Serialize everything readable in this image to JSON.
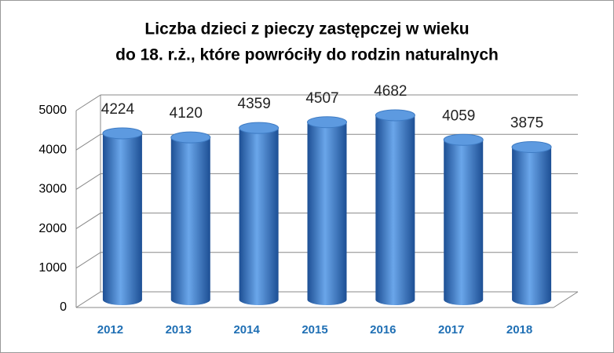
{
  "chart_data": {
    "type": "bar3d",
    "title": [
      "Liczba dzieci z pieczy zastępczej w wieku",
      "do 18. r.ż., które powróciły do rodzin naturalnych"
    ],
    "categories": [
      "2012",
      "2013",
      "2014",
      "2015",
      "2016",
      "2017",
      "2018"
    ],
    "values": [
      4224,
      4120,
      4359,
      4507,
      4682,
      4059,
      3875
    ],
    "color": "#3a7fd0",
    "ylim": [
      0,
      5000
    ],
    "yticks": [
      0,
      1000,
      2000,
      3000,
      4000,
      5000
    ],
    "grid": true
  }
}
